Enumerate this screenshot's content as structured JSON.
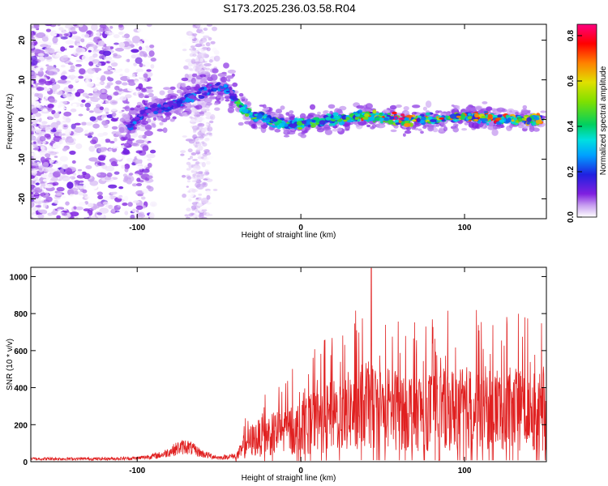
{
  "title": "S173.2025.236.03.58.R04",
  "chart_data": [
    {
      "type": "heatmap",
      "xlabel": "Height of straight line (km)",
      "ylabel": "Frequency (Hz)",
      "xlim": [
        -165,
        150
      ],
      "ylim": [
        -25,
        24
      ],
      "xticks": [
        -100,
        0,
        100
      ],
      "xtick_labels": [
        "-100",
        "0",
        "100"
      ],
      "yticks": [
        -20,
        -10,
        0,
        10,
        20
      ],
      "ytick_labels": [
        "-20",
        "-10",
        "0",
        "10",
        "20"
      ],
      "ridge": {
        "x": [
          -105,
          -95,
          -85,
          -75,
          -65,
          -55,
          -45,
          -38,
          -30,
          -20,
          -10,
          0,
          20,
          40,
          60,
          80,
          100,
          120,
          148
        ],
        "y": [
          -2,
          2,
          3,
          4,
          6,
          8,
          8,
          4,
          1,
          0,
          -1,
          -1,
          0,
          1,
          0,
          0,
          1,
          0,
          0
        ]
      },
      "colorbar": {
        "label": "Normalized spectral amplitude",
        "range": [
          0.0,
          0.85
        ],
        "ticks": [
          0.0,
          0.2,
          0.4,
          0.6,
          0.8
        ],
        "tick_labels": [
          "0.0",
          "0.2",
          "0.4",
          "0.6",
          "0.8"
        ],
        "colors": [
          "#ffffff",
          "#c8a0f0",
          "#8020e0",
          "#2020e0",
          "#00a0ff",
          "#00e0e0",
          "#00d060",
          "#80e000",
          "#e0e000",
          "#ff8000",
          "#ff0000",
          "#ff0080"
        ]
      }
    },
    {
      "type": "line",
      "xlabel": "Height of straight line (km)",
      "ylabel": "SNR (10 * v/v)",
      "xlim": [
        -165,
        150
      ],
      "ylim": [
        0,
        1050
      ],
      "xticks": [
        -100,
        0,
        100
      ],
      "xtick_labels": [
        "-100",
        "0",
        "100"
      ],
      "yticks": [
        0,
        200,
        400,
        600,
        800,
        1000
      ],
      "ytick_labels": [
        "0",
        "200",
        "400",
        "600",
        "800",
        "1000"
      ],
      "color": "#e02020",
      "envelope": {
        "x": [
          -165,
          -120,
          -100,
          -85,
          -75,
          -70,
          -60,
          -50,
          -40,
          -35,
          -30,
          -20,
          -10,
          0,
          10,
          20,
          30,
          40,
          50,
          60,
          80,
          100,
          120,
          140,
          150
        ],
        "y": [
          15,
          15,
          18,
          35,
          70,
          80,
          40,
          20,
          30,
          100,
          160,
          200,
          230,
          250,
          300,
          340,
          380,
          420,
          400,
          390,
          380,
          400,
          400,
          380,
          360
        ]
      },
      "peak": {
        "x": 43,
        "y": 1045
      }
    }
  ]
}
